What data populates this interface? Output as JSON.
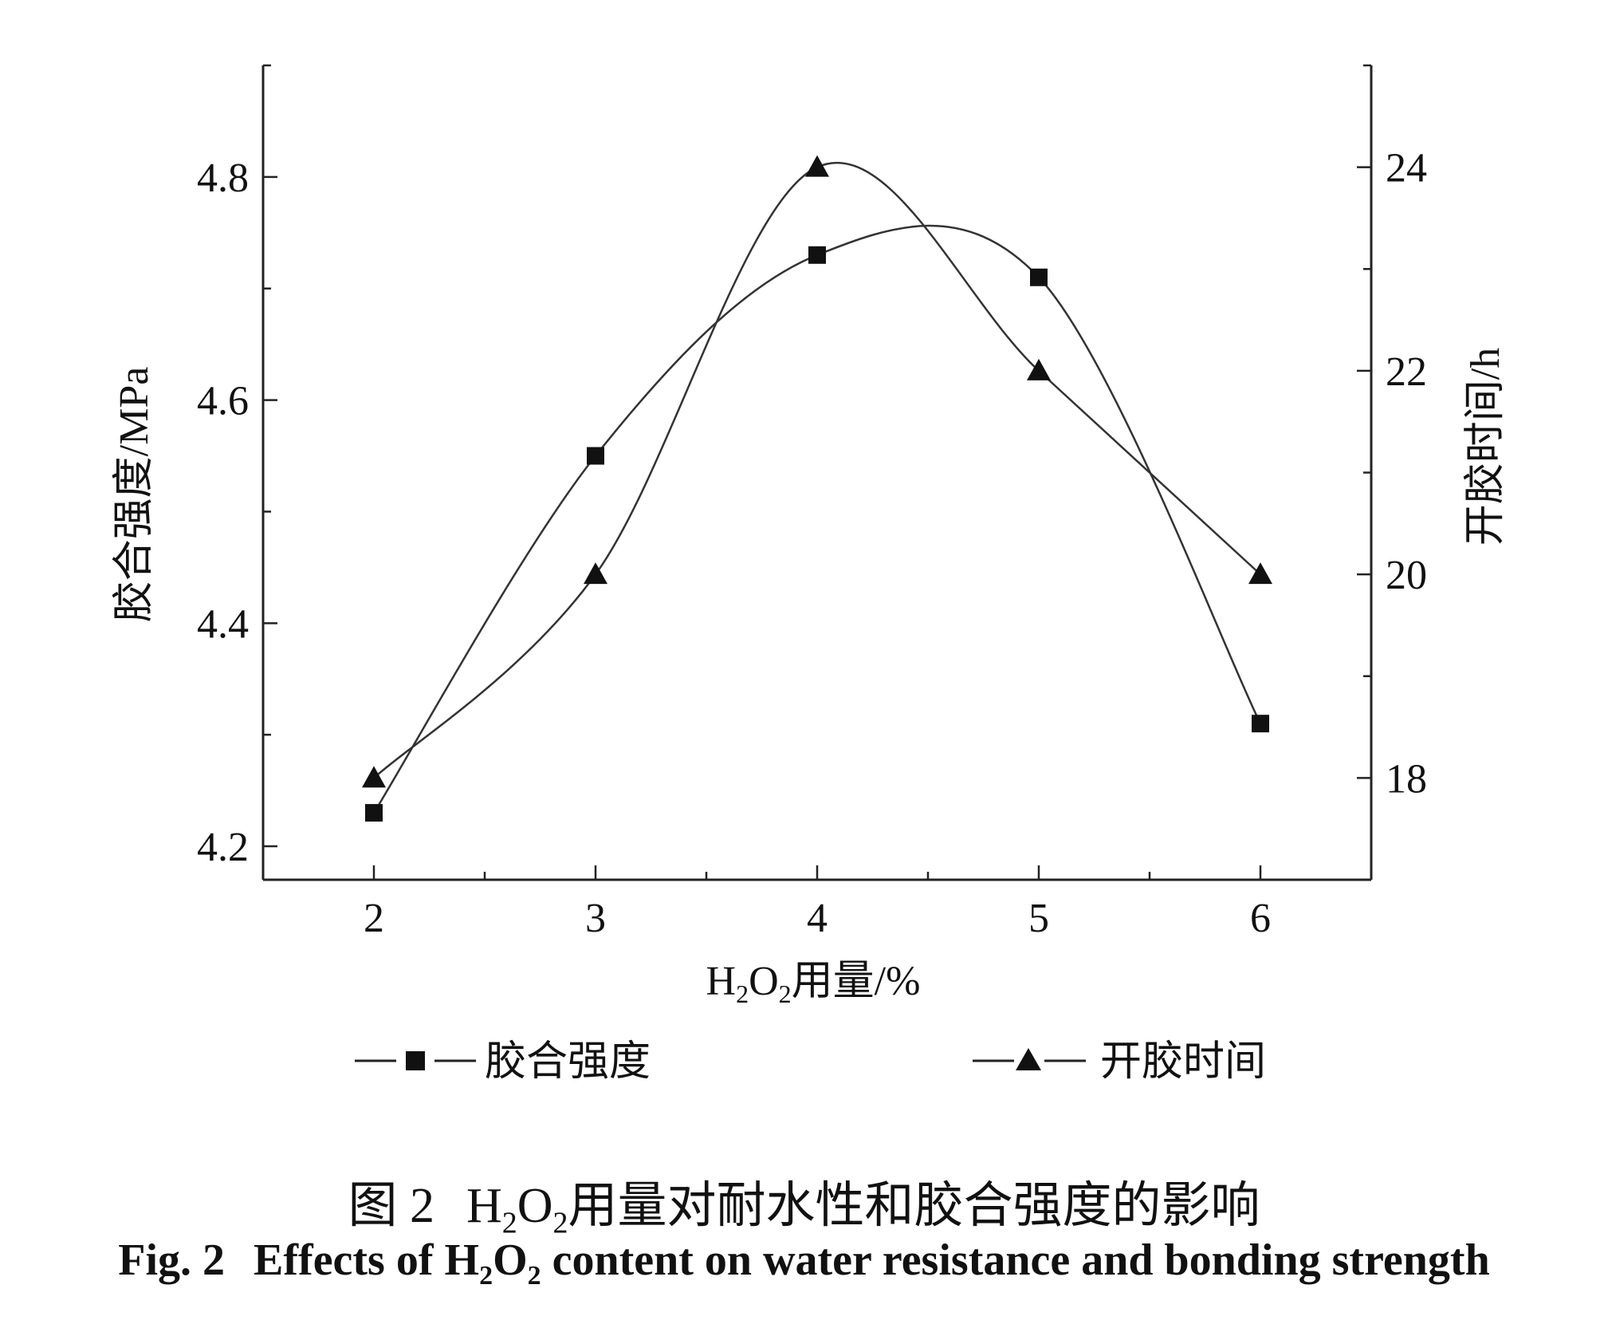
{
  "chart_data": {
    "type": "line",
    "x": [
      2,
      3,
      4,
      5,
      6
    ],
    "xlabel": "H2O2用量/%",
    "xlabel_parts": {
      "pre": "H",
      "sub1": "2",
      "mid": "O",
      "sub2": "2",
      "post": "用量/%"
    },
    "xlim": [
      1.5,
      6.5
    ],
    "xticks": [
      "2",
      "3",
      "4",
      "5",
      "6"
    ],
    "ylabel_left": "胶合强度/MPa",
    "ylim_left": [
      4.17,
      4.9
    ],
    "yticks_left": [
      "4.2",
      "4.4",
      "4.6",
      "4.8"
    ],
    "ylabel_right": "开胶时间/h",
    "ylim_right": [
      17,
      25
    ],
    "yticks_right": [
      "18",
      "20",
      "22",
      "24"
    ],
    "grid": false,
    "legend_position": "bottom",
    "series": [
      {
        "name": "胶合强度",
        "axis": "left",
        "marker": "square",
        "values": [
          4.23,
          4.55,
          4.73,
          4.71,
          4.31
        ]
      },
      {
        "name": "开胶时间",
        "axis": "right",
        "marker": "triangle",
        "values": [
          18,
          20,
          24,
          22,
          20
        ]
      }
    ]
  },
  "caption": {
    "cn_label": "图 2",
    "cn_pre": "H",
    "cn_sub1": "2",
    "cn_mid": "O",
    "cn_sub2": "2",
    "cn_post": "用量对耐水性和胶合强度的影响",
    "en_label": "Fig. 2",
    "en_pre": "Effects of H",
    "en_sub1": "2",
    "en_mid": "O",
    "en_sub2": "2",
    "en_post": " content on water resistance and bonding strength"
  }
}
